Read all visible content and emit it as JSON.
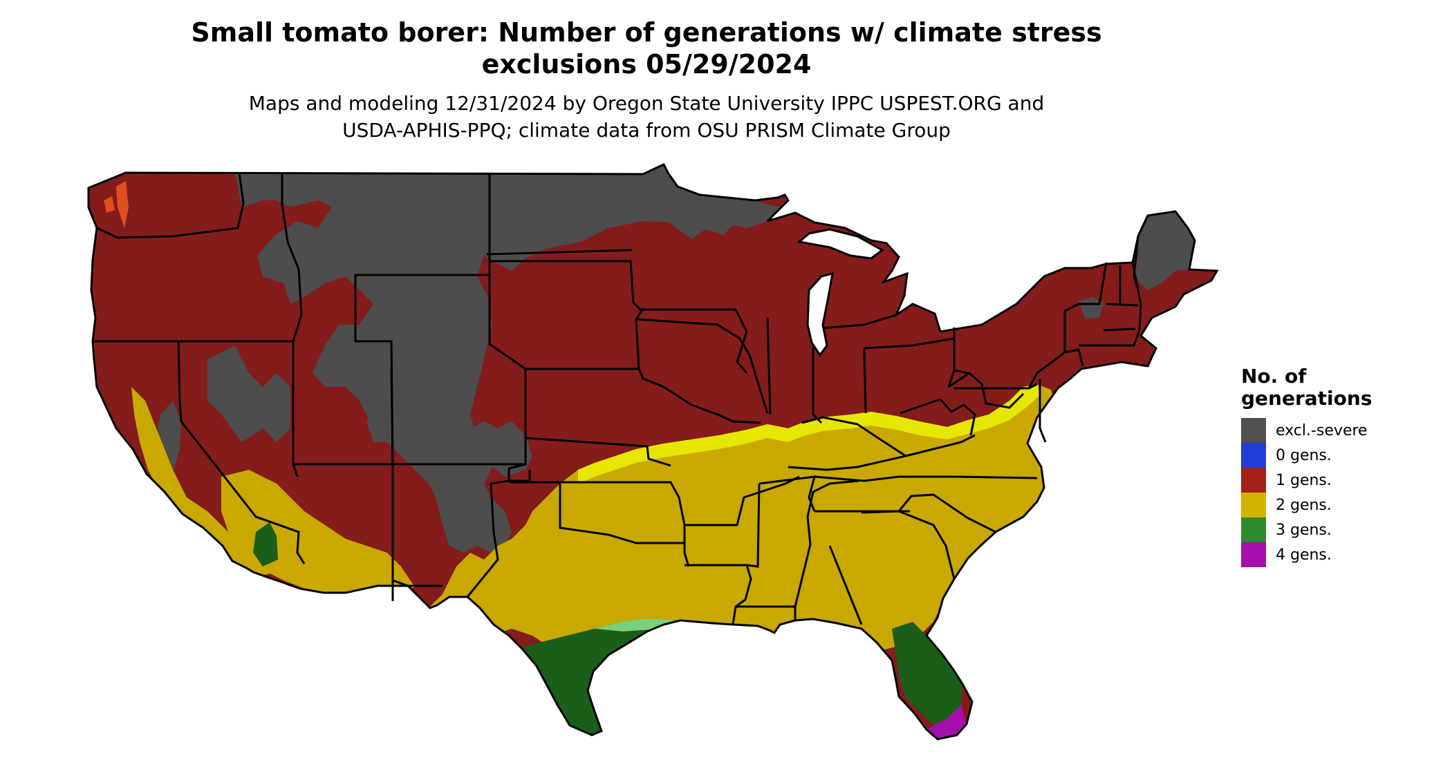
{
  "header": {
    "title_line1": "Small tomato borer: Number of generations w/ climate stress",
    "title_line2": "exclusions 05/29/2024",
    "subtitle_line1": "Maps and modeling 12/31/2024 by Oregon State University IPPC USPEST.ORG and",
    "subtitle_line2": "USDA-APHIS-PPQ; climate data from OSU PRISM Climate Group"
  },
  "legend": {
    "title_line1": "No. of",
    "title_line2": "generations",
    "items": [
      {
        "label": "excl.-severe",
        "color": "#505050"
      },
      {
        "label": "0 gens.",
        "color": "#1f3fd8"
      },
      {
        "label": "1 gens.",
        "color": "#a52019"
      },
      {
        "label": "2 gens.",
        "color": "#d4b300"
      },
      {
        "label": "3 gens.",
        "color": "#2b8a2b"
      },
      {
        "label": "4 gens.",
        "color": "#a50fad"
      }
    ]
  },
  "map": {
    "region": "Contiguous United States",
    "category_colors": {
      "excl_severe": "#4d4d4d",
      "gens_0": "#1f3fd8",
      "gens_1": "#841c1c",
      "gens_2": "#c9a900",
      "gens_3": "#1a5e1a",
      "gens_4": "#a50fad",
      "highlight_1": "#e0501e",
      "highlight_2": "#e6e600",
      "highlight_3": "#7bd07b"
    }
  }
}
